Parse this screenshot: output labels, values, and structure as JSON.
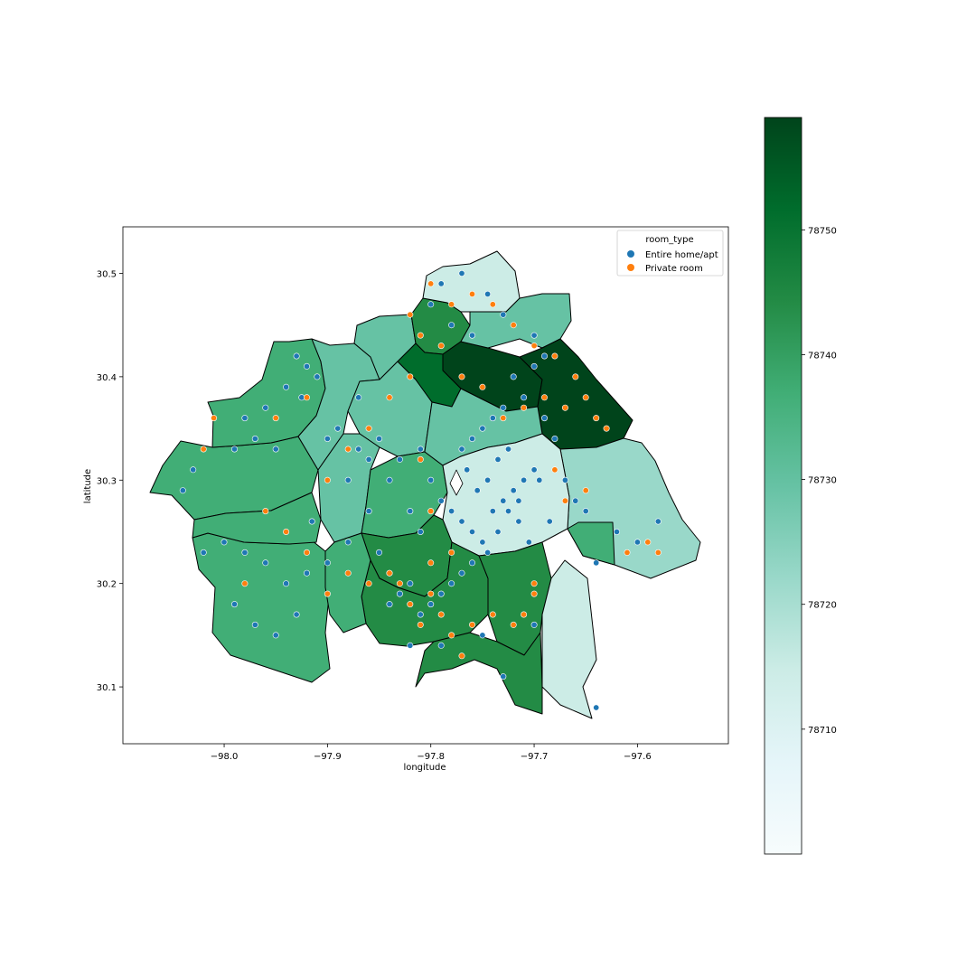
{
  "chart_data": {
    "type": "scatter",
    "xlabel": "longitude",
    "ylabel": "latitude",
    "xlim": [
      -98.098,
      -97.512
    ],
    "ylim": [
      30.045,
      30.545
    ],
    "xticks": [
      -98.0,
      -97.9,
      -97.8,
      -97.7,
      -97.6
    ],
    "xtick_labels": [
      "−98.0",
      "−97.9",
      "−97.8",
      "−97.7",
      "−97.6"
    ],
    "yticks": [
      30.1,
      30.2,
      30.3,
      30.4,
      30.5
    ],
    "ytick_labels": [
      "30.1",
      "30.2",
      "30.3",
      "30.4",
      "30.5"
    ],
    "grid": false,
    "legend": {
      "title": "room_type",
      "placement": "top-right",
      "entries": [
        {
          "name": "Entire home/apt",
          "color": "#1f77b4"
        },
        {
          "name": "Private room",
          "color": "#ff7f0e"
        }
      ]
    },
    "colorbar": {
      "colormap": "BuGn",
      "range": [
        78700,
        78759
      ],
      "ticks": [
        78710,
        78720,
        78730,
        78740,
        78750
      ],
      "tick_labels": [
        "78710",
        "78720",
        "78730",
        "78740",
        "78750"
      ]
    },
    "series": [
      {
        "name": "Entire home/apt",
        "color": "#1f77b4",
        "points": [
          [
            -97.93,
            30.42
          ],
          [
            -97.92,
            30.41
          ],
          [
            -97.91,
            30.4
          ],
          [
            -97.925,
            30.38
          ],
          [
            -97.94,
            30.39
          ],
          [
            -97.96,
            30.37
          ],
          [
            -97.98,
            30.36
          ],
          [
            -97.9,
            30.34
          ],
          [
            -97.87,
            30.33
          ],
          [
            -97.86,
            30.32
          ],
          [
            -97.84,
            30.3
          ],
          [
            -97.85,
            30.34
          ],
          [
            -97.83,
            30.32
          ],
          [
            -97.81,
            30.33
          ],
          [
            -97.8,
            30.3
          ],
          [
            -97.79,
            30.28
          ],
          [
            -97.78,
            30.27
          ],
          [
            -97.77,
            30.26
          ],
          [
            -97.76,
            30.25
          ],
          [
            -97.75,
            30.24
          ],
          [
            -97.74,
            30.27
          ],
          [
            -97.73,
            30.28
          ],
          [
            -97.72,
            30.29
          ],
          [
            -97.71,
            30.3
          ],
          [
            -97.7,
            30.31
          ],
          [
            -97.745,
            30.3
          ],
          [
            -97.735,
            30.32
          ],
          [
            -97.725,
            30.33
          ],
          [
            -97.715,
            30.26
          ],
          [
            -97.705,
            30.24
          ],
          [
            -97.76,
            30.22
          ],
          [
            -97.77,
            30.21
          ],
          [
            -97.78,
            30.2
          ],
          [
            -97.79,
            30.19
          ],
          [
            -97.8,
            30.18
          ],
          [
            -97.81,
            30.17
          ],
          [
            -97.82,
            30.2
          ],
          [
            -97.83,
            30.19
          ],
          [
            -97.84,
            30.21
          ],
          [
            -97.85,
            30.23
          ],
          [
            -97.88,
            30.24
          ],
          [
            -97.9,
            30.22
          ],
          [
            -97.92,
            30.21
          ],
          [
            -97.94,
            30.2
          ],
          [
            -97.96,
            30.22
          ],
          [
            -97.98,
            30.23
          ],
          [
            -98.0,
            30.24
          ],
          [
            -98.02,
            30.23
          ],
          [
            -97.97,
            30.16
          ],
          [
            -97.95,
            30.15
          ],
          [
            -97.93,
            30.17
          ],
          [
            -97.99,
            30.18
          ],
          [
            -98.04,
            30.29
          ],
          [
            -98.03,
            30.31
          ],
          [
            -97.99,
            30.33
          ],
          [
            -97.97,
            30.34
          ],
          [
            -97.95,
            30.33
          ],
          [
            -97.72,
            30.4
          ],
          [
            -97.7,
            30.41
          ],
          [
            -97.69,
            30.42
          ],
          [
            -97.71,
            30.38
          ],
          [
            -97.73,
            30.37
          ],
          [
            -97.74,
            30.36
          ],
          [
            -97.75,
            30.35
          ],
          [
            -97.76,
            30.34
          ],
          [
            -97.77,
            30.33
          ],
          [
            -97.69,
            30.36
          ],
          [
            -97.68,
            30.34
          ],
          [
            -97.67,
            30.3
          ],
          [
            -97.66,
            30.28
          ],
          [
            -97.65,
            30.27
          ],
          [
            -97.64,
            30.22
          ],
          [
            -97.62,
            30.25
          ],
          [
            -97.6,
            30.24
          ],
          [
            -97.58,
            30.26
          ],
          [
            -97.64,
            30.08
          ],
          [
            -97.7,
            30.16
          ],
          [
            -97.73,
            30.11
          ],
          [
            -97.75,
            30.15
          ],
          [
            -97.79,
            30.14
          ],
          [
            -97.82,
            30.14
          ],
          [
            -97.84,
            30.18
          ],
          [
            -97.76,
            30.44
          ],
          [
            -97.78,
            30.45
          ],
          [
            -97.8,
            30.47
          ],
          [
            -97.79,
            30.49
          ],
          [
            -97.77,
            30.5
          ],
          [
            -97.745,
            30.48
          ],
          [
            -97.73,
            30.46
          ],
          [
            -97.7,
            30.44
          ],
          [
            -97.82,
            30.27
          ],
          [
            -97.81,
            30.25
          ],
          [
            -97.745,
            30.23
          ],
          [
            -97.735,
            30.25
          ],
          [
            -97.725,
            30.27
          ],
          [
            -97.755,
            30.29
          ],
          [
            -97.765,
            30.31
          ],
          [
            -97.715,
            30.28
          ],
          [
            -97.695,
            30.3
          ],
          [
            -97.685,
            30.26
          ],
          [
            -97.87,
            30.38
          ],
          [
            -97.89,
            30.35
          ],
          [
            -97.88,
            30.3
          ],
          [
            -97.86,
            30.27
          ],
          [
            -97.915,
            30.26
          ]
        ]
      },
      {
        "name": "Private room",
        "color": "#ff7f0e",
        "points": [
          [
            -97.8,
            30.49
          ],
          [
            -97.78,
            30.47
          ],
          [
            -97.76,
            30.48
          ],
          [
            -97.74,
            30.47
          ],
          [
            -97.72,
            30.45
          ],
          [
            -97.7,
            30.43
          ],
          [
            -97.68,
            30.42
          ],
          [
            -97.66,
            30.4
          ],
          [
            -97.65,
            30.38
          ],
          [
            -97.64,
            30.36
          ],
          [
            -97.63,
            30.35
          ],
          [
            -97.67,
            30.37
          ],
          [
            -97.69,
            30.38
          ],
          [
            -97.71,
            30.37
          ],
          [
            -97.73,
            30.36
          ],
          [
            -97.75,
            30.39
          ],
          [
            -97.77,
            30.4
          ],
          [
            -97.79,
            30.43
          ],
          [
            -97.81,
            30.44
          ],
          [
            -97.82,
            30.46
          ],
          [
            -97.84,
            30.21
          ],
          [
            -97.83,
            30.2
          ],
          [
            -97.82,
            30.18
          ],
          [
            -97.81,
            30.16
          ],
          [
            -97.8,
            30.19
          ],
          [
            -97.79,
            30.17
          ],
          [
            -97.78,
            30.15
          ],
          [
            -97.76,
            30.16
          ],
          [
            -97.74,
            30.17
          ],
          [
            -97.72,
            30.16
          ],
          [
            -97.7,
            30.19
          ],
          [
            -97.86,
            30.2
          ],
          [
            -97.88,
            30.21
          ],
          [
            -97.9,
            30.19
          ],
          [
            -97.92,
            30.23
          ],
          [
            -97.94,
            30.25
          ],
          [
            -97.96,
            30.27
          ],
          [
            -97.98,
            30.2
          ],
          [
            -98.02,
            30.33
          ],
          [
            -98.01,
            30.36
          ],
          [
            -97.95,
            30.36
          ],
          [
            -97.92,
            30.38
          ],
          [
            -97.9,
            30.3
          ],
          [
            -97.88,
            30.33
          ],
          [
            -97.86,
            30.35
          ],
          [
            -97.84,
            30.38
          ],
          [
            -97.82,
            30.4
          ],
          [
            -97.81,
            30.32
          ],
          [
            -97.8,
            30.27
          ],
          [
            -97.68,
            30.31
          ],
          [
            -97.67,
            30.28
          ],
          [
            -97.65,
            30.29
          ],
          [
            -97.61,
            30.23
          ],
          [
            -97.59,
            30.24
          ],
          [
            -97.58,
            30.23
          ],
          [
            -97.7,
            30.2
          ],
          [
            -97.71,
            30.17
          ],
          [
            -97.77,
            30.13
          ],
          [
            -97.8,
            30.22
          ],
          [
            -97.78,
            30.23
          ]
        ]
      }
    ]
  }
}
